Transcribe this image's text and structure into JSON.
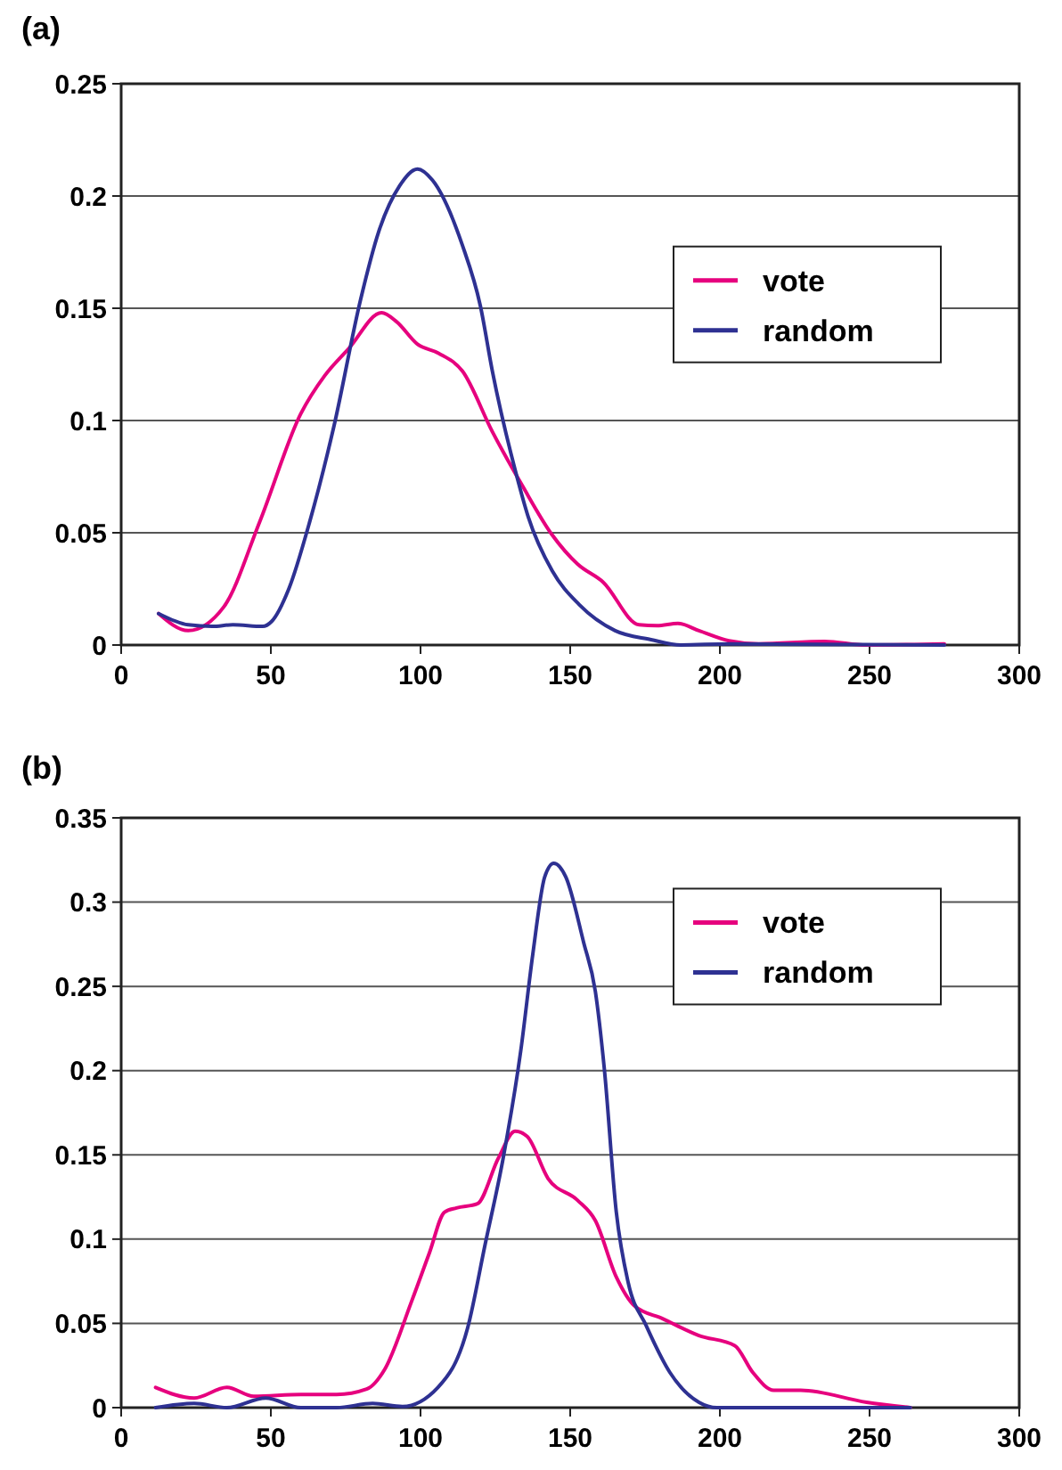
{
  "chart_data": [
    {
      "type": "line",
      "title": "(a)",
      "xlim": [
        0,
        300
      ],
      "xticks": [
        0,
        50,
        100,
        150,
        200,
        250,
        300
      ],
      "ylim": [
        0,
        0.25
      ],
      "yticks": [
        0,
        0.05,
        0.1,
        0.15,
        0.2,
        0.25
      ],
      "grid": "y",
      "legend": "right",
      "series": [
        {
          "name": "vote",
          "color": "#e6007e",
          "x": [
            12.5,
            22.4,
            34.3,
            46.3,
            60,
            68,
            76,
            87,
            92,
            99,
            106,
            114,
            124,
            134,
            144,
            152.5,
            161,
            173,
            179,
            186,
            193,
            203,
            213,
            235,
            249,
            275
          ],
          "values": [
            0.014,
            0.0064,
            0.017,
            0.055,
            0.103,
            0.12,
            0.132,
            0.148,
            0.144,
            0.134,
            0.13,
            0.122,
            0.095,
            0.071,
            0.049,
            0.036,
            0.028,
            0.009,
            0.0086,
            0.0096,
            0.0064,
            0.0019,
            0.0005,
            0.0016,
            0,
            0.0005
          ]
        },
        {
          "name": "random",
          "color": "#2e3192",
          "x": [
            12.5,
            22.4,
            30.4,
            37.3,
            47.3,
            50.2,
            56,
            63,
            71,
            80,
            86,
            93,
            99,
            104,
            114,
            120,
            124,
            132,
            136,
            144,
            153,
            165,
            177,
            187,
            203,
            275
          ],
          "values": [
            0.014,
            0.009,
            0.0083,
            0.009,
            0.0083,
            0.0104,
            0.025,
            0.055,
            0.097,
            0.154,
            0.184,
            0.2045,
            0.212,
            0.207,
            0.178,
            0.151,
            0.122,
            0.076,
            0.057,
            0.033,
            0.018,
            0.0064,
            0.0024,
            0,
            0.0005,
            0
          ]
        }
      ]
    },
    {
      "type": "line",
      "title": "(b)",
      "xlim": [
        0,
        300
      ],
      "xticks": [
        0,
        50,
        100,
        150,
        200,
        250,
        300
      ],
      "ylim": [
        0,
        0.35
      ],
      "yticks": [
        0,
        0.05,
        0.1,
        0.15,
        0.2,
        0.25,
        0.3,
        0.35
      ],
      "grid": "y",
      "legend": "top right",
      "series": [
        {
          "name": "vote",
          "color": "#e6007e",
          "x": [
            11.5,
            24.4,
            35.3,
            44.3,
            60,
            72,
            82,
            88,
            97,
            103,
            108,
            112,
            119,
            126,
            131.6,
            135.6,
            142.6,
            152.5,
            158.4,
            165.4,
            171.4,
            181,
            193,
            205,
            211,
            218,
            227,
            249,
            263.6
          ],
          "values": [
            0.012,
            0.0057,
            0.012,
            0.0067,
            0.0078,
            0.0078,
            0.011,
            0.0226,
            0.063,
            0.092,
            0.116,
            0.1185,
            0.121,
            0.148,
            0.164,
            0.161,
            0.136,
            0.123,
            0.111,
            0.0775,
            0.0605,
            0.0527,
            0.0428,
            0.0368,
            0.0209,
            0.0103,
            0.0103,
            0.0032,
            0
          ]
        },
        {
          "name": "random",
          "color": "#2e3192",
          "x": [
            11.5,
            24.4,
            35.3,
            48.3,
            60,
            72,
            84,
            94,
            105.8,
            115.7,
            121.6,
            127.6,
            133.5,
            137.5,
            141.5,
            144.5,
            148.5,
            154.5,
            158.4,
            161.4,
            165.4,
            169.4,
            175.3,
            183.3,
            193,
            199,
            263.6
          ],
          "values": [
            0,
            0.0025,
            0,
            0.0057,
            0,
            0,
            0.0025,
            0.0007,
            0.012,
            0.047,
            0.097,
            0.148,
            0.212,
            0.269,
            0.315,
            0.323,
            0.315,
            0.276,
            0.247,
            0.201,
            0.116,
            0.074,
            0.049,
            0.0209,
            0.0032,
            0,
            0
          ]
        }
      ]
    }
  ]
}
